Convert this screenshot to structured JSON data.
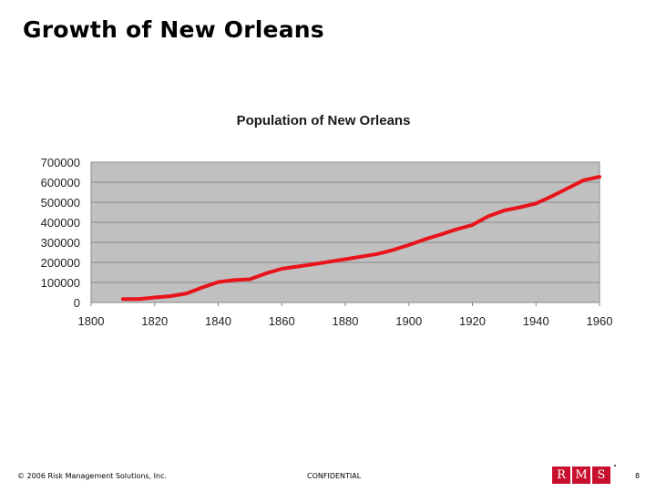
{
  "slide": {
    "title": "Growth of New Orleans"
  },
  "footer": {
    "copyright": "© 2006 Risk Management Solutions, Inc.",
    "confidential": "CONFIDENTIAL",
    "page_number": "8"
  },
  "logo": {
    "letters": [
      "R",
      "M",
      "S"
    ]
  },
  "colors": {
    "line": "#e8131b",
    "plot_bg": "#c0c0c0",
    "logo_red": "#c8102e"
  },
  "chart_data": {
    "type": "line",
    "title": "Population of New Orleans",
    "xlabel": "",
    "ylabel": "",
    "xlim": [
      1800,
      1960
    ],
    "ylim": [
      0,
      700000
    ],
    "x_ticks": [
      1800,
      1820,
      1840,
      1860,
      1880,
      1900,
      1920,
      1940,
      1960
    ],
    "y_ticks": [
      0,
      100000,
      200000,
      300000,
      400000,
      500000,
      600000,
      700000
    ],
    "grid": true,
    "series": [
      {
        "name": "Population",
        "x": [
          1810,
          1815,
          1820,
          1825,
          1830,
          1835,
          1840,
          1845,
          1850,
          1855,
          1860,
          1870,
          1880,
          1890,
          1895,
          1900,
          1905,
          1910,
          1915,
          1920,
          1925,
          1930,
          1935,
          1940,
          1945,
          1950,
          1955,
          1960
        ],
        "values": [
          17000,
          17000,
          25000,
          32000,
          45000,
          75000,
          102000,
          112000,
          116000,
          145000,
          168000,
          191000,
          216000,
          242000,
          262000,
          287000,
          315000,
          339000,
          365000,
          387000,
          430000,
          459000,
          475000,
          494000,
          530000,
          570000,
          610000,
          627000
        ]
      }
    ]
  }
}
